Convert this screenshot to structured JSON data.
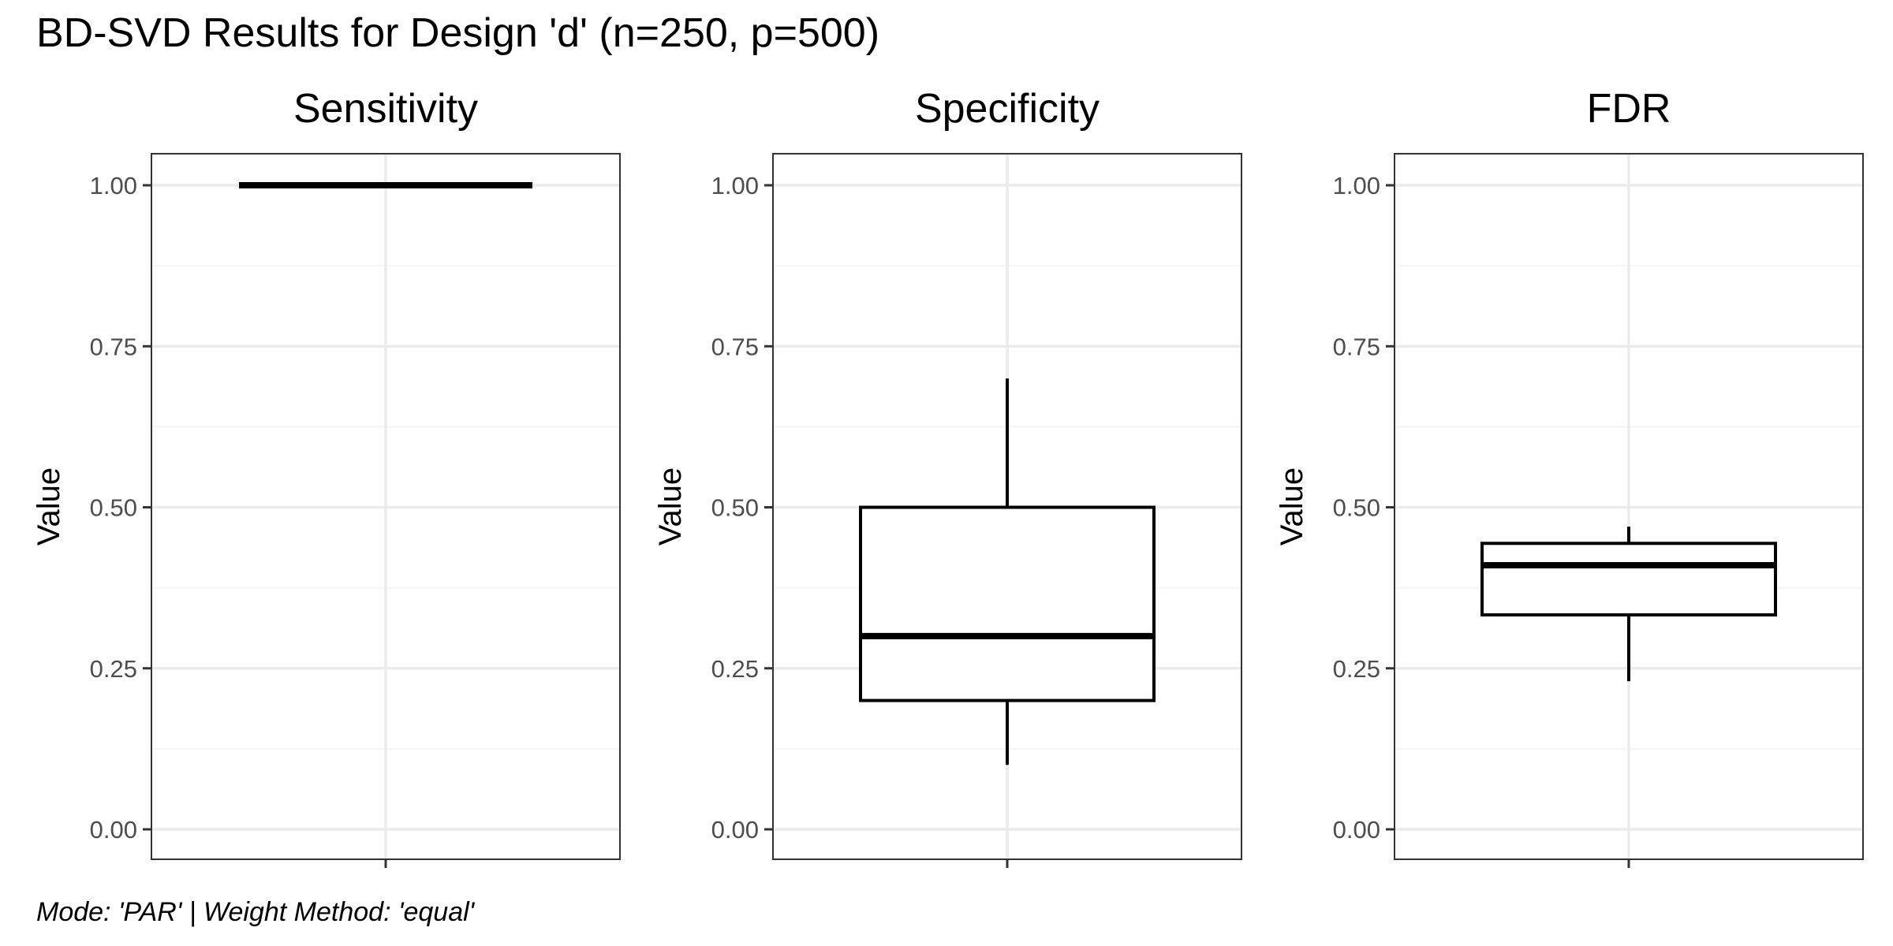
{
  "figure": {
    "title": "BD-SVD Results for Design 'd' (n=250, p=500)",
    "caption": "Mode: 'PAR' | Weight Method: 'equal'"
  },
  "chart_data": [
    {
      "type": "boxplot",
      "title": "Sensitivity",
      "xlabel": "",
      "ylabel": "Value",
      "ylim": [
        0,
        1
      ],
      "yticks": [
        "0.00",
        "0.25",
        "0.50",
        "0.75",
        "1.00"
      ],
      "box": {
        "whisker_low": 1.0,
        "q1": 1.0,
        "median": 1.0,
        "q3": 1.0,
        "whisker_high": 1.0
      },
      "grid": true,
      "legend": "none"
    },
    {
      "type": "boxplot",
      "title": "Specificity",
      "xlabel": "",
      "ylabel": "Value",
      "ylim": [
        0,
        1
      ],
      "yticks": [
        "0.00",
        "0.25",
        "0.50",
        "0.75",
        "1.00"
      ],
      "box": {
        "whisker_low": 0.1,
        "q1": 0.2,
        "median": 0.3,
        "q3": 0.5,
        "whisker_high": 0.7
      },
      "grid": true,
      "legend": "none"
    },
    {
      "type": "boxplot",
      "title": "FDR",
      "xlabel": "",
      "ylabel": "Value",
      "ylim": [
        0,
        1
      ],
      "yticks": [
        "0.00",
        "0.25",
        "0.50",
        "0.75",
        "1.00"
      ],
      "box": {
        "whisker_low": 0.23,
        "q1": 0.333,
        "median": 0.41,
        "q3": 0.444,
        "whisker_high": 0.47
      },
      "grid": true,
      "legend": "none"
    }
  ]
}
